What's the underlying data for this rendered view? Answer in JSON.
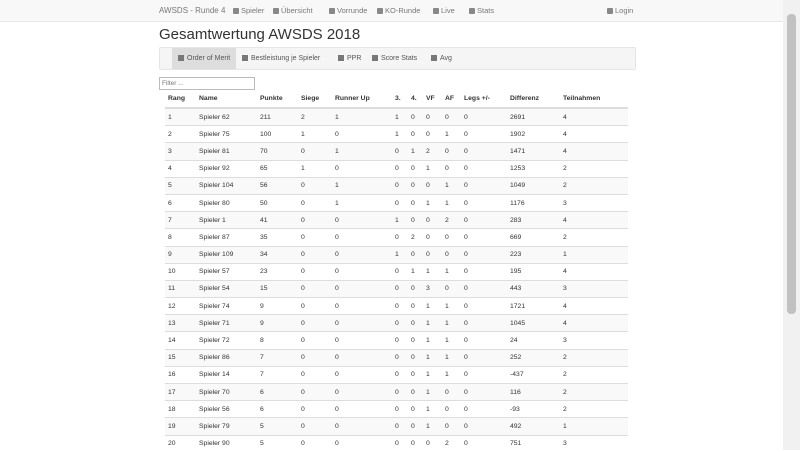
{
  "navbar": {
    "brand": "AWSDS - Runde 4",
    "items": [
      "Spieler",
      "Übersicht",
      "Vorrunde",
      "KO-Runde",
      "Live",
      "Stats"
    ],
    "login": "Login"
  },
  "header": {
    "title": "Gesamtwertung AWSDS 2018"
  },
  "tabs": [
    "Order of Merit",
    "Bestleistung je Spieler",
    "PPR",
    "Score Stats",
    "Avg"
  ],
  "filter": {
    "placeholder": "Filter ..."
  },
  "table": {
    "columns": [
      "Rang",
      "Name",
      "Punkte",
      "Siege",
      "Runner Up",
      "3.",
      "4.",
      "VF",
      "AF",
      "Legs +/-",
      "Differenz",
      "Teilnahmen"
    ],
    "rows": [
      [
        1,
        "Spieler 62",
        211,
        2,
        1,
        1,
        0,
        0,
        0,
        0,
        2691,
        4
      ],
      [
        2,
        "Spieler 75",
        100,
        1,
        0,
        1,
        0,
        0,
        1,
        0,
        1902,
        4
      ],
      [
        3,
        "Spieler 81",
        70,
        0,
        1,
        0,
        1,
        2,
        0,
        0,
        1471,
        4
      ],
      [
        4,
        "Spieler 92",
        65,
        1,
        0,
        0,
        0,
        1,
        0,
        0,
        1253,
        2
      ],
      [
        5,
        "Spieler 104",
        56,
        0,
        1,
        0,
        0,
        0,
        1,
        0,
        1049,
        2
      ],
      [
        6,
        "Spieler 80",
        50,
        0,
        1,
        0,
        0,
        1,
        1,
        0,
        1176,
        3
      ],
      [
        7,
        "Spieler 1",
        41,
        0,
        0,
        1,
        0,
        0,
        2,
        0,
        283,
        4
      ],
      [
        8,
        "Spieler 87",
        35,
        0,
        0,
        0,
        2,
        0,
        0,
        0,
        669,
        2
      ],
      [
        9,
        "Spieler 109",
        34,
        0,
        0,
        1,
        0,
        0,
        0,
        0,
        223,
        1
      ],
      [
        10,
        "Spieler 57",
        23,
        0,
        0,
        0,
        1,
        1,
        1,
        0,
        195,
        4
      ],
      [
        11,
        "Spieler 54",
        15,
        0,
        0,
        0,
        0,
        3,
        0,
        0,
        443,
        3
      ],
      [
        12,
        "Spieler 74",
        9,
        0,
        0,
        0,
        0,
        1,
        1,
        0,
        1721,
        4
      ],
      [
        13,
        "Spieler 71",
        9,
        0,
        0,
        0,
        0,
        1,
        1,
        0,
        1045,
        4
      ],
      [
        14,
        "Spieler 72",
        8,
        0,
        0,
        0,
        0,
        1,
        1,
        0,
        24,
        3
      ],
      [
        15,
        "Spieler 86",
        7,
        0,
        0,
        0,
        0,
        1,
        1,
        0,
        252,
        2
      ],
      [
        16,
        "Spieler 14",
        7,
        0,
        0,
        0,
        0,
        1,
        1,
        0,
        -437,
        2
      ],
      [
        17,
        "Spieler 70",
        6,
        0,
        0,
        0,
        0,
        1,
        0,
        0,
        116,
        2
      ],
      [
        18,
        "Spieler 56",
        6,
        0,
        0,
        0,
        0,
        1,
        0,
        0,
        -93,
        2
      ],
      [
        19,
        "Spieler 79",
        5,
        0,
        0,
        0,
        0,
        1,
        0,
        0,
        492,
        1
      ],
      [
        20,
        "Spieler 90",
        5,
        0,
        0,
        0,
        0,
        0,
        2,
        0,
        751,
        3
      ]
    ]
  }
}
